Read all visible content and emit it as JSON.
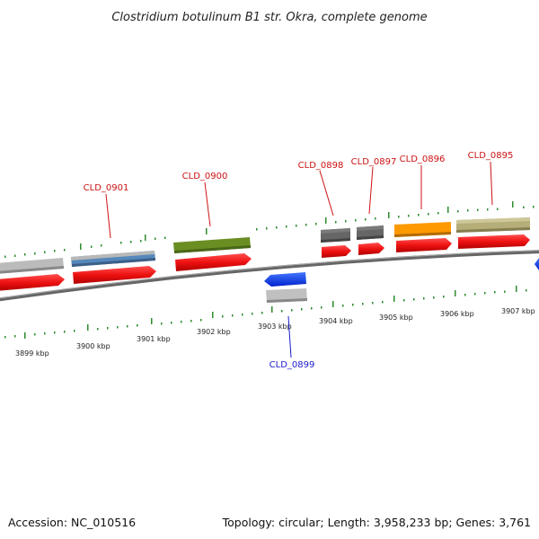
{
  "title": "Clostridium botulinum B1 str. Okra, complete genome",
  "footer": {
    "accession": "Accession: NC_010516",
    "summary": "Topology: circular; Length: 3,958,233 bp; Genes: 3,761"
  },
  "kbp_labels": [
    "3899 kbp",
    "3900 kbp",
    "3901 kbp",
    "3902 kbp",
    "3903 kbp",
    "3904 kbp",
    "3905 kbp",
    "3906 kbp",
    "3907 kbp"
  ],
  "gene_labels": [
    {
      "text": "CLD_0901",
      "strand": "forward"
    },
    {
      "text": "CLD_0900",
      "strand": "forward"
    },
    {
      "text": "CLD_0898",
      "strand": "forward"
    },
    {
      "text": "CLD_0897",
      "strand": "forward"
    },
    {
      "text": "CLD_0896",
      "strand": "forward"
    },
    {
      "text": "CLD_0895",
      "strand": "forward"
    },
    {
      "text": "CLD_0899",
      "strand": "reverse"
    }
  ],
  "colors": {
    "forward_label": "#cc1111",
    "reverse_label": "#1a1acc",
    "backbone": "#777777",
    "tick": "#2e8b2e",
    "cds": "#ee1111",
    "reverse_gene": "#1144ee",
    "gene_colors": {
      "CLD_0902": "#bbbbbb",
      "CLD_0901": "#5588bb",
      "CLD_0900": "#6b8e23",
      "CLD_0898": "#666666",
      "CLD_0897": "#666666",
      "CLD_0896": "#ff9900",
      "CLD_0895": "#b5ae78",
      "CLD_0899": "#c0c0c0"
    }
  }
}
